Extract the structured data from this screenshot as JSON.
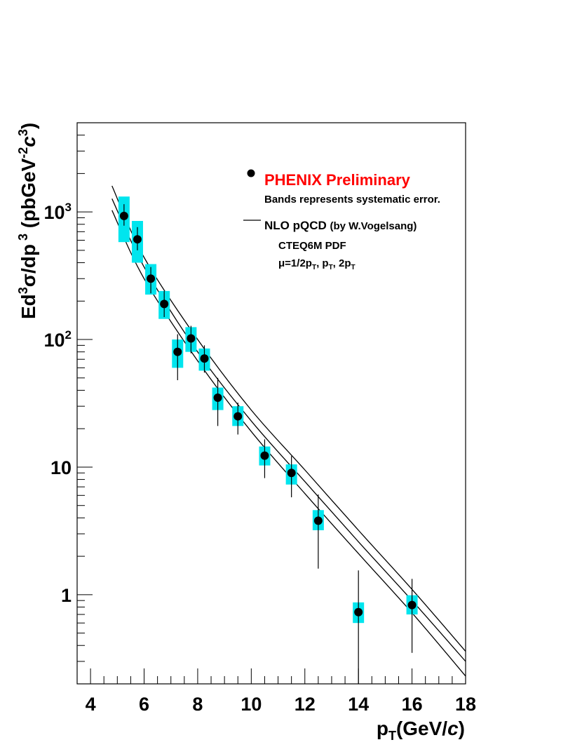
{
  "chart_data": {
    "type": "scatter",
    "x_label_main": "p",
    "x_label_sub": "T",
    "x_label_rest": "(GeV/",
    "x_label_c": "c",
    "x_label_end": ")",
    "y_label_parts": [
      "Ed",
      "3",
      "σ/dp",
      " 3",
      " (pbGeV",
      "-2",
      "c",
      "3",
      ")"
    ],
    "xlim": [
      3.5,
      18
    ],
    "ylim": [
      0.2,
      5000
    ],
    "y_scale": "log",
    "x_ticks": [
      {
        "value": 4,
        "label": "4"
      },
      {
        "value": 6,
        "label": "6"
      },
      {
        "value": 8,
        "label": "8"
      },
      {
        "value": 10,
        "label": "10"
      },
      {
        "value": 12,
        "label": "12"
      },
      {
        "value": 14,
        "label": "14"
      },
      {
        "value": 16,
        "label": "16"
      },
      {
        "value": 18,
        "label": "18"
      }
    ],
    "y_ticks": [
      {
        "value": 1,
        "base": "1",
        "exp": ""
      },
      {
        "value": 10,
        "base": "10",
        "exp": ""
      },
      {
        "value": 100,
        "base": "10",
        "exp": "2"
      },
      {
        "value": 1000,
        "base": "10",
        "exp": "3"
      }
    ],
    "legend": {
      "placement": "top-right",
      "marker_entry": {
        "label": "PHENIX Preliminary",
        "color": "#ff0000"
      },
      "note": "Bands represents systematic error.",
      "line_entry_main": "NLO pQCD",
      "line_entry_by": "(by W.Vogelsang)",
      "pdf": "CTEQ6M PDF",
      "scale_parts": [
        "μ=1/2p",
        "T",
        ", p",
        "T",
        ", 2p",
        "T"
      ]
    },
    "series": [
      {
        "name": "PHENIX Preliminary",
        "x": [
          5.25,
          5.75,
          6.25,
          6.75,
          7.25,
          7.75,
          8.25,
          8.75,
          9.5,
          10.5,
          11.5,
          12.5,
          14.0,
          16.0
        ],
        "y": [
          930,
          610,
          300,
          190,
          80,
          102,
          71,
          35,
          25,
          12.3,
          9,
          3.8,
          0.73,
          0.83
        ],
        "stat_low": [
          780,
          500,
          230,
          150,
          48,
          78,
          55,
          21,
          18,
          8.2,
          5.8,
          1.6,
          0.2,
          0.35
        ],
        "stat_high": [
          1150,
          760,
          370,
          240,
          110,
          128,
          90,
          50,
          32,
          16.5,
          12.2,
          6.1,
          1.55,
          1.33
        ],
        "sys_low": [
          580,
          400,
          225,
          145,
          60,
          80,
          57,
          28,
          21,
          10.3,
          7.3,
          3.2,
          0.6,
          0.7
        ],
        "sys_high": [
          1320,
          850,
          390,
          240,
          100,
          125,
          85,
          42,
          30,
          14.5,
          10.5,
          4.6,
          0.87,
          0.99
        ]
      }
    ],
    "band_color": "#00e5ee",
    "point_color": "#000000",
    "curves": [
      {
        "name": "μ=1/2pT",
        "x": [
          4.8,
          6,
          8,
          10,
          12,
          14,
          16,
          18
        ],
        "y": [
          1600,
          440,
          100,
          28,
          9.5,
          3.2,
          1.1,
          0.36
        ]
      },
      {
        "name": "μ=pT",
        "x": [
          4.8,
          6,
          8,
          10,
          12,
          14,
          16,
          18
        ],
        "y": [
          1270,
          370,
          80,
          23,
          7.7,
          2.6,
          0.9,
          0.3
        ]
      },
      {
        "name": "μ=2pT",
        "x": [
          4.8,
          6,
          8,
          10,
          12,
          14,
          16,
          18
        ],
        "y": [
          1030,
          300,
          68,
          19,
          6.2,
          2.1,
          0.72,
          0.23
        ]
      }
    ]
  }
}
